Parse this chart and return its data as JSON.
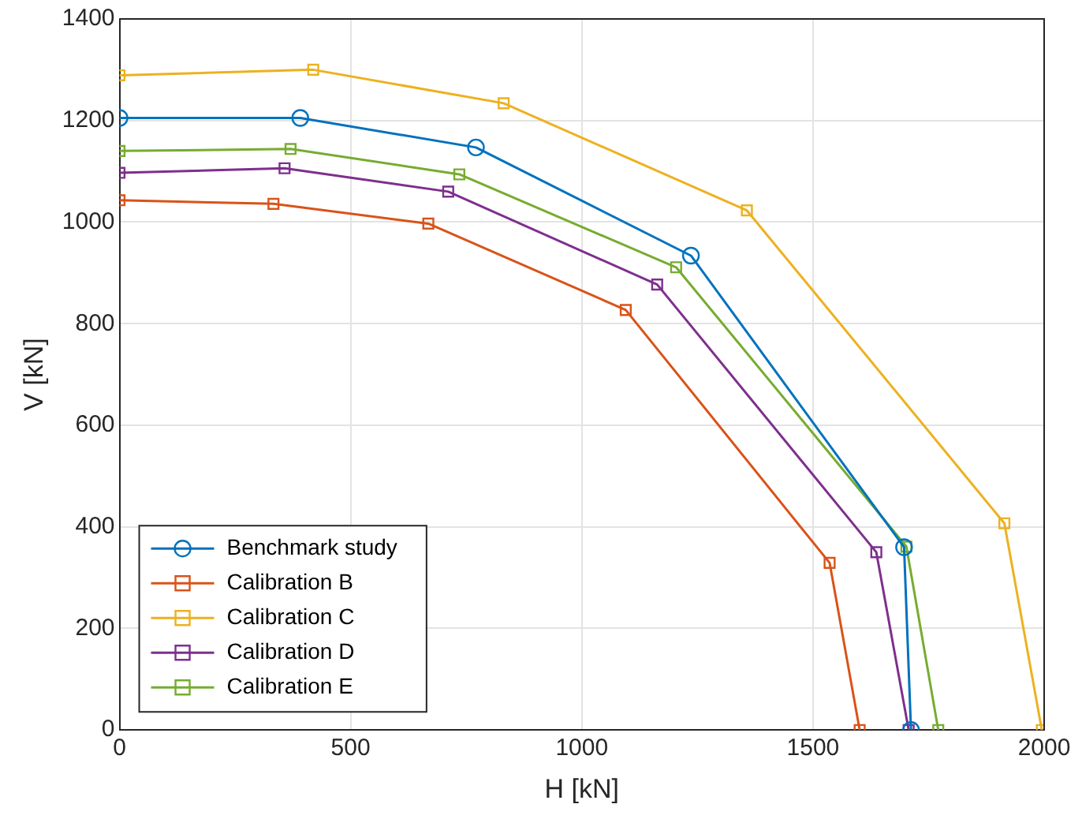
{
  "chart_data": {
    "type": "line",
    "xlabel": "H [kN]",
    "ylabel": "V [kN]",
    "xlim": [
      0,
      2000
    ],
    "xticks": [
      0,
      500,
      1000,
      1500,
      2000
    ],
    "ylim": [
      0,
      1400
    ],
    "yticks": [
      0,
      200,
      400,
      600,
      800,
      1000,
      1200,
      1400
    ],
    "grid": true,
    "legend": "bottom left",
    "line_style": "solid",
    "series": [
      {
        "name": "Benchmark study",
        "color": "#0072bd",
        "marker": "circle",
        "x": [
          0,
          391,
          771,
          1236,
          1697,
          1712
        ],
        "values": [
          1205,
          1205,
          1147,
          934,
          360,
          0
        ]
      },
      {
        "name": "Calibration B",
        "color": "#d95319",
        "marker": "square",
        "x": [
          0,
          333,
          668,
          1095,
          1536,
          1601
        ],
        "values": [
          1043,
          1036,
          997,
          827,
          329,
          0
        ]
      },
      {
        "name": "Calibration C",
        "color": "#edb120",
        "marker": "square",
        "x": [
          0,
          419,
          831,
          1357,
          1914,
          1995
        ],
        "values": [
          1289,
          1300,
          1234,
          1023,
          407,
          0
        ]
      },
      {
        "name": "Calibration D",
        "color": "#7e2f8e",
        "marker": "square",
        "x": [
          0,
          357,
          711,
          1163,
          1637,
          1707
        ],
        "values": [
          1097,
          1106,
          1060,
          877,
          350,
          0
        ]
      },
      {
        "name": "Calibration E",
        "color": "#77ac30",
        "marker": "square",
        "x": [
          0,
          370,
          735,
          1204,
          1702,
          1771
        ],
        "values": [
          1140,
          1144,
          1094,
          911,
          361,
          0
        ]
      }
    ]
  }
}
